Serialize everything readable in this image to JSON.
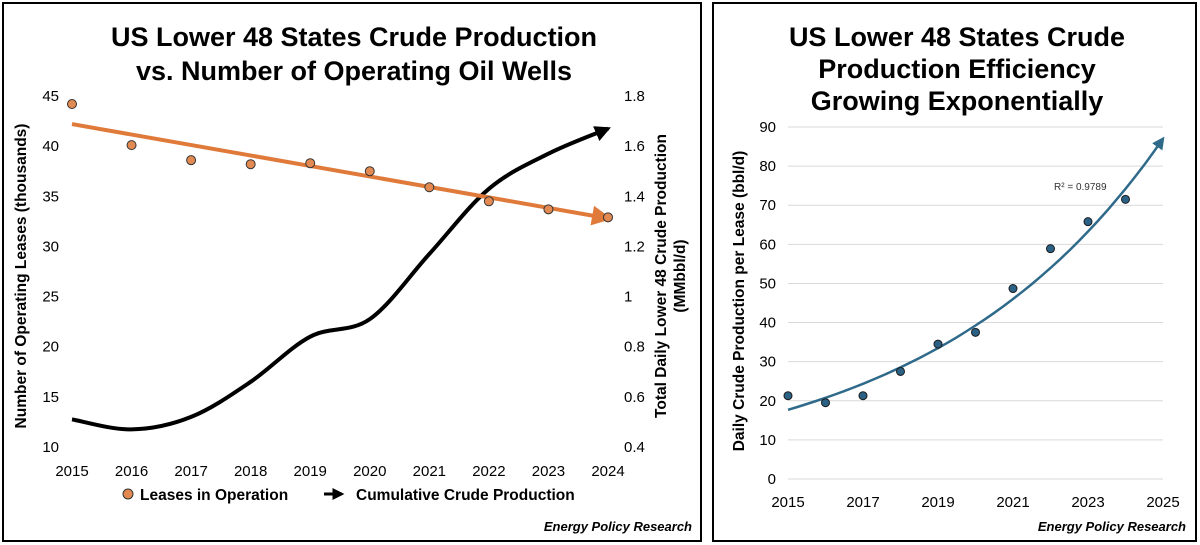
{
  "source": "Energy Policy Research",
  "colors": {
    "orange": "#e07a3a",
    "orange_marker": "#e38a52",
    "black": "#000000",
    "blue": "#2f6a8a",
    "blue_marker": "#2a6185",
    "grid": "#d9d9d9"
  },
  "chart_data": [
    {
      "type": "scatter",
      "title_lines": [
        "US Lower 48 States Crude Production",
        "vs. Number of Operating Oil Wells"
      ],
      "xlabel": "",
      "ylabel": "Number of Operating Leases (thousands)",
      "y2label_lines": [
        "Total Daily Lower 48 Crude Production",
        "(MMbbl/d)"
      ],
      "x_ticks": [
        "2015",
        "2016",
        "2017",
        "2018",
        "2019",
        "2020",
        "2021",
        "2022",
        "2023",
        "2024"
      ],
      "xlim": [
        2015,
        2024
      ],
      "ylim": [
        10,
        45
      ],
      "y_ticks": [
        "10",
        "15",
        "20",
        "25",
        "30",
        "35",
        "40",
        "45"
      ],
      "y2lim": [
        0.4,
        1.8
      ],
      "y2_ticks": [
        "0.4",
        "0.6",
        "0.8",
        "1",
        "1.2",
        "1.4",
        "1.6",
        "1.8"
      ],
      "grid": false,
      "legend_position": "bottom",
      "series": [
        {
          "name": "Leases in Operation",
          "axis": "left",
          "marker": "circle",
          "x": [
            2015,
            2016,
            2017,
            2018,
            2019,
            2020,
            2021,
            2022,
            2023,
            2024
          ],
          "y": [
            44.2,
            40.1,
            38.6,
            38.2,
            38.3,
            37.5,
            35.9,
            34.5,
            33.7,
            32.9
          ],
          "trendline": {
            "type": "linear",
            "x": [
              2015,
              2024
            ],
            "y": [
              42.2,
              32.8
            ]
          }
        },
        {
          "name": "Cumulative Crude Production",
          "axis": "right",
          "line": "smooth-arrow",
          "x": [
            2015,
            2016,
            2017,
            2018,
            2019,
            2020,
            2021,
            2022,
            2023,
            2024
          ],
          "y": [
            0.51,
            0.47,
            0.52,
            0.66,
            0.84,
            0.91,
            1.17,
            1.43,
            1.57,
            1.67
          ]
        }
      ]
    },
    {
      "type": "scatter",
      "title_lines": [
        "US Lower 48 States Crude",
        "Production Efficiency",
        "Growing Exponentially"
      ],
      "xlabel": "",
      "ylabel": "Daily Crude Production per Lease (bbl/d)",
      "x_ticks": [
        "2015",
        "2017",
        "2019",
        "2021",
        "2023",
        "2025"
      ],
      "xlim": [
        2015,
        2025
      ],
      "ylim": [
        0,
        90
      ],
      "y_ticks": [
        "0",
        "10",
        "20",
        "30",
        "40",
        "50",
        "60",
        "70",
        "80",
        "90"
      ],
      "grid": true,
      "annotation": "R² = 0.9789",
      "series": [
        {
          "marker": "circle",
          "x": [
            2015,
            2016,
            2017,
            2018,
            2019,
            2020,
            2021,
            2022,
            2023,
            2024
          ],
          "y": [
            21.3,
            19.5,
            21.3,
            27.5,
            34.5,
            37.5,
            48.7,
            58.9,
            65.8,
            71.5
          ],
          "trendline": {
            "type": "exponential",
            "x": [
              2015,
              2025
            ],
            "y": [
              17.7,
              87.0
            ]
          }
        }
      ]
    }
  ]
}
